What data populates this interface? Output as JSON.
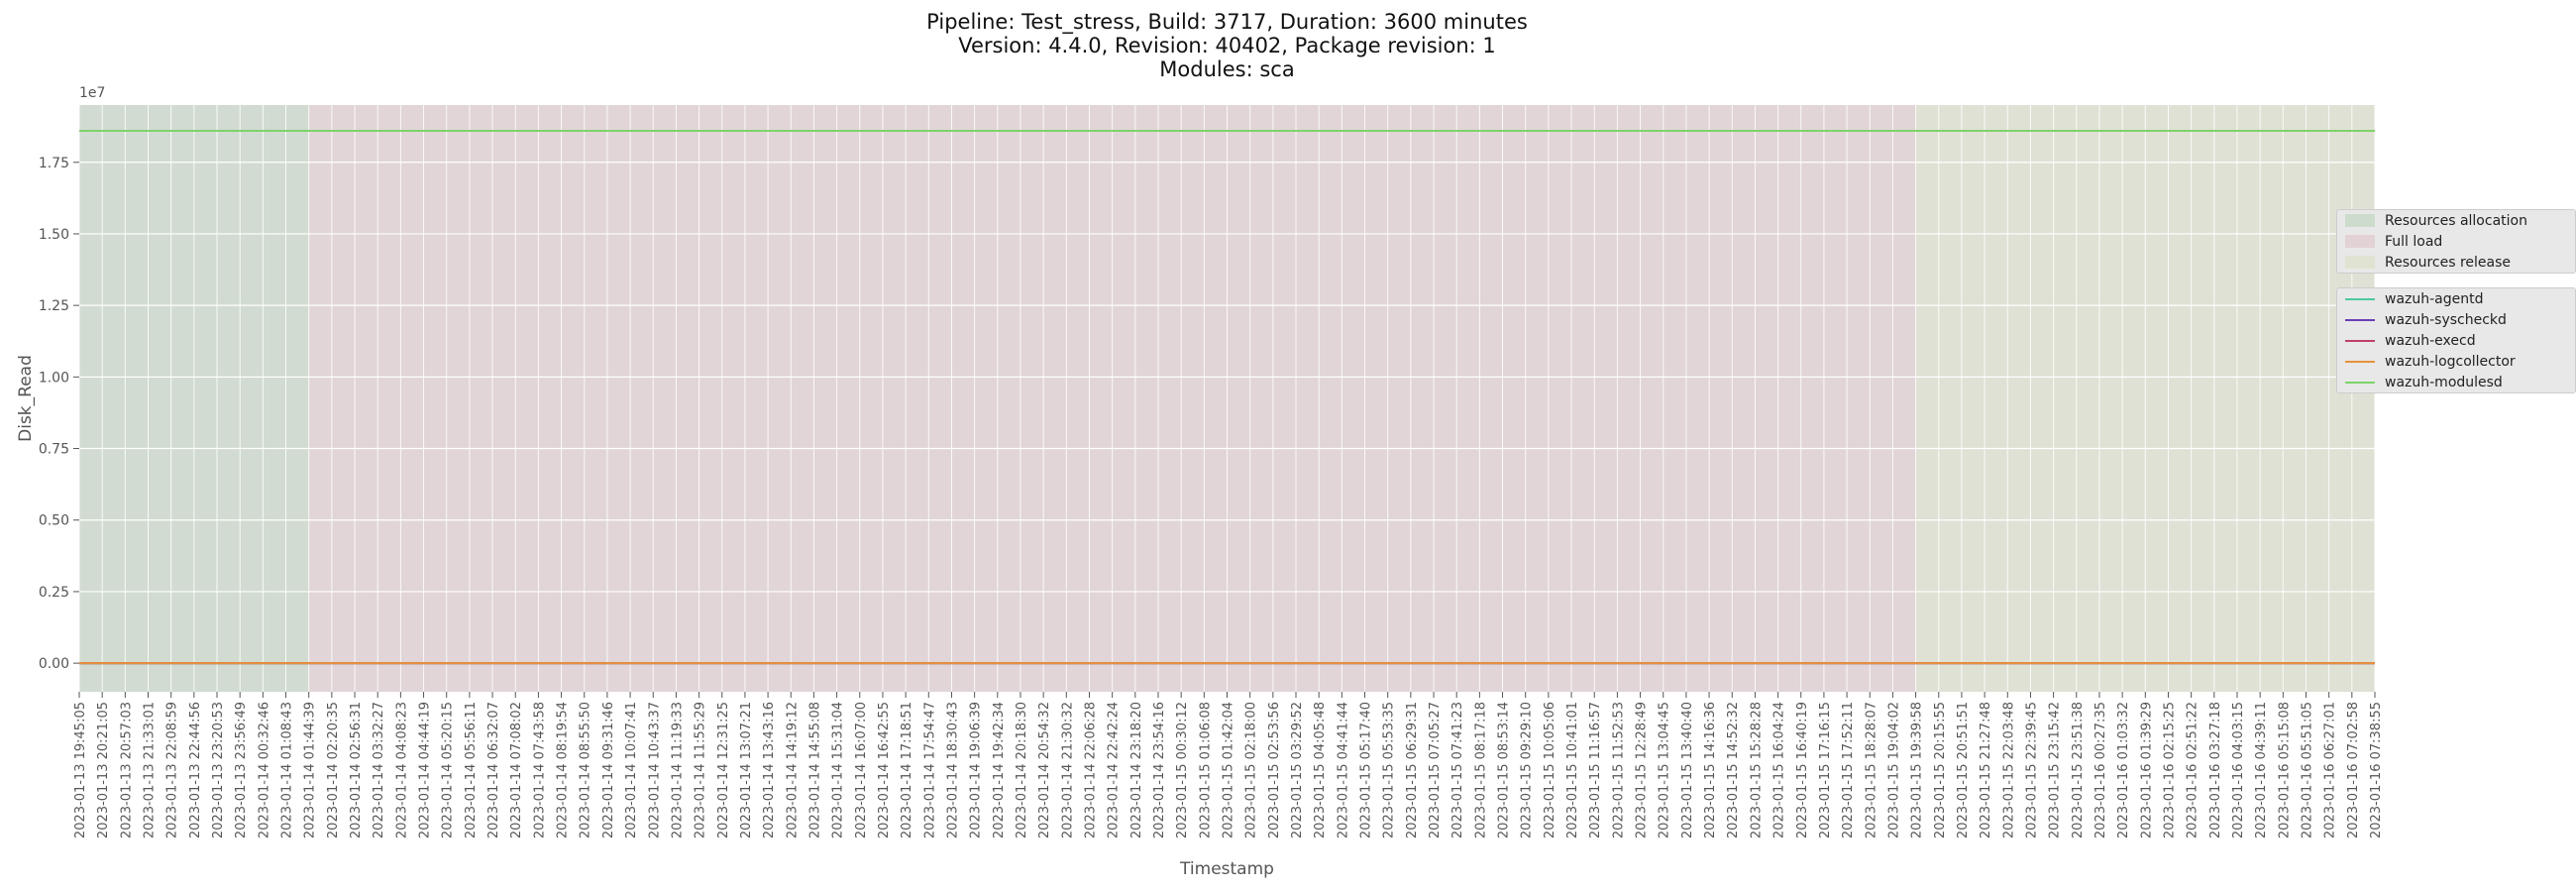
{
  "chart_data": {
    "type": "line",
    "title_lines": [
      "Pipeline: Test_stress, Build: 3717, Duration: 3600 minutes",
      "Version: 4.4.0, Revision: 40402, Package revision: 1",
      "Modules: sca"
    ],
    "xlabel": "Timestamp",
    "ylabel": "Disk_Read",
    "y_offset_label": "1e7",
    "ylim": [
      -1000000,
      19500000
    ],
    "yticks": [
      0,
      2500000,
      5000000,
      7500000,
      10000000,
      12500000,
      15000000,
      17500000
    ],
    "ytick_labels": [
      "0.00",
      "0.25",
      "0.50",
      "0.75",
      "1.00",
      "1.25",
      "1.50",
      "1.75"
    ],
    "grid": true,
    "x_tick_labels": [
      "2023-01-13 19:45:05",
      "2023-01-13 20:21:05",
      "2023-01-13 20:57:03",
      "2023-01-13 21:33:01",
      "2023-01-13 22:08:59",
      "2023-01-13 22:44:56",
      "2023-01-13 23:20:53",
      "2023-01-13 23:56:49",
      "2023-01-14 00:32:46",
      "2023-01-14 01:08:43",
      "2023-01-14 01:44:39",
      "2023-01-14 02:20:35",
      "2023-01-14 02:56:31",
      "2023-01-14 03:32:27",
      "2023-01-14 04:08:23",
      "2023-01-14 04:44:19",
      "2023-01-14 05:20:15",
      "2023-01-14 05:56:11",
      "2023-01-14 06:32:07",
      "2023-01-14 07:08:02",
      "2023-01-14 07:43:58",
      "2023-01-14 08:19:54",
      "2023-01-14 08:55:50",
      "2023-01-14 09:31:46",
      "2023-01-14 10:07:41",
      "2023-01-14 10:43:37",
      "2023-01-14 11:19:33",
      "2023-01-14 11:55:29",
      "2023-01-14 12:31:25",
      "2023-01-14 13:07:21",
      "2023-01-14 13:43:16",
      "2023-01-14 14:19:12",
      "2023-01-14 14:55:08",
      "2023-01-14 15:31:04",
      "2023-01-14 16:07:00",
      "2023-01-14 16:42:55",
      "2023-01-14 17:18:51",
      "2023-01-14 17:54:47",
      "2023-01-14 18:30:43",
      "2023-01-14 19:06:39",
      "2023-01-14 19:42:34",
      "2023-01-14 20:18:30",
      "2023-01-14 20:54:32",
      "2023-01-14 21:30:32",
      "2023-01-14 22:06:28",
      "2023-01-14 22:42:24",
      "2023-01-14 23:18:20",
      "2023-01-14 23:54:16",
      "2023-01-15 00:30:12",
      "2023-01-15 01:06:08",
      "2023-01-15 01:42:04",
      "2023-01-15 02:18:00",
      "2023-01-15 02:53:56",
      "2023-01-15 03:29:52",
      "2023-01-15 04:05:48",
      "2023-01-15 04:41:44",
      "2023-01-15 05:17:40",
      "2023-01-15 05:53:35",
      "2023-01-15 06:29:31",
      "2023-01-15 07:05:27",
      "2023-01-15 07:41:23",
      "2023-01-15 08:17:18",
      "2023-01-15 08:53:14",
      "2023-01-15 09:29:10",
      "2023-01-15 10:05:06",
      "2023-01-15 10:41:01",
      "2023-01-15 11:16:57",
      "2023-01-15 11:52:53",
      "2023-01-15 12:28:49",
      "2023-01-15 13:04:45",
      "2023-01-15 13:40:40",
      "2023-01-15 14:16:36",
      "2023-01-15 14:52:32",
      "2023-01-15 15:28:28",
      "2023-01-15 16:04:24",
      "2023-01-15 16:40:19",
      "2023-01-15 17:16:15",
      "2023-01-15 17:52:11",
      "2023-01-15 18:28:07",
      "2023-01-15 19:04:02",
      "2023-01-15 19:39:58",
      "2023-01-15 20:15:55",
      "2023-01-15 20:51:51",
      "2023-01-15 21:27:48",
      "2023-01-15 22:03:48",
      "2023-01-15 22:39:45",
      "2023-01-15 23:15:42",
      "2023-01-15 23:51:38",
      "2023-01-16 00:27:35",
      "2023-01-16 01:03:32",
      "2023-01-16 01:39:29",
      "2023-01-16 02:15:25",
      "2023-01-16 02:51:22",
      "2023-01-16 03:27:18",
      "2023-01-16 04:03:15",
      "2023-01-16 04:39:11",
      "2023-01-16 05:15:08",
      "2023-01-16 05:51:05",
      "2023-01-16 06:27:01",
      "2023-01-16 07:02:58",
      "2023-01-16 07:38:55"
    ],
    "phases": [
      {
        "name": "Resources allocation",
        "from_tick": 0,
        "to_tick": 10,
        "color": "#8fbc8f"
      },
      {
        "name": "Full load",
        "from_tick": 10,
        "to_tick": 80,
        "color": "#d8a0a8"
      },
      {
        "name": "Resources release",
        "from_tick": 80,
        "to_tick": 100,
        "color": "#d2d8a0"
      }
    ],
    "series": [
      {
        "name": "wazuh-agentd",
        "color": "#4cc9a0",
        "value": 0
      },
      {
        "name": "wazuh-syscheckd",
        "color": "#6a3db8",
        "value": 0
      },
      {
        "name": "wazuh-execd",
        "color": "#c0406a",
        "value": 0
      },
      {
        "name": "wazuh-logcollector",
        "color": "#e8923a",
        "value": 0
      },
      {
        "name": "wazuh-modulesd",
        "color": "#7ed36a",
        "value": 18600000
      }
    ]
  }
}
